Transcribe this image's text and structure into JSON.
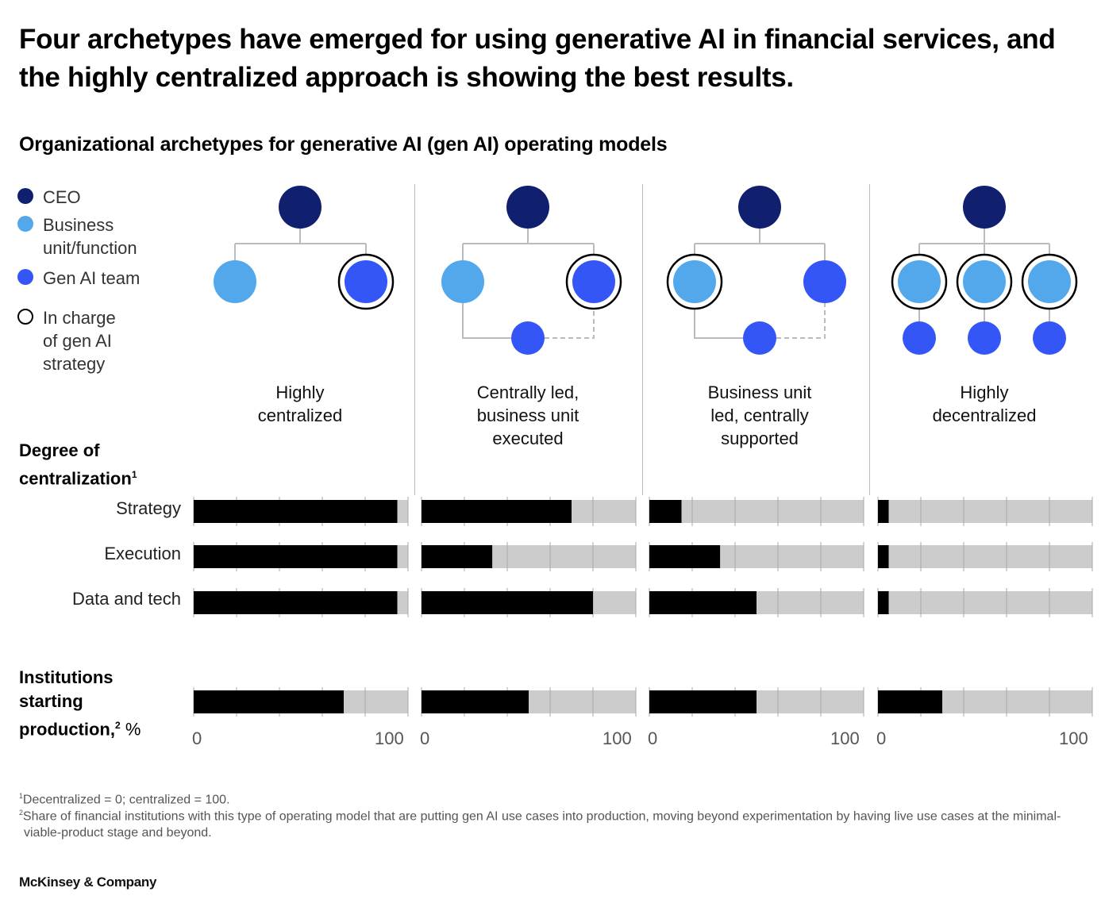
{
  "title": "Four archetypes have emerged for using generative AI in financial services, and the highly centralized approach is showing the best results.",
  "subtitle": "Organizational archetypes for generative AI (gen AI) operating models",
  "legend": {
    "items": [
      {
        "key": "ceo",
        "label": "CEO",
        "color": "#10206F",
        "icon": "filled-circle-icon"
      },
      {
        "key": "bu",
        "label": "Business unit/function",
        "color": "#53A8EC",
        "icon": "filled-circle-icon"
      },
      {
        "key": "genai",
        "label": "Gen AI team",
        "color": "#3556F6",
        "icon": "filled-circle-icon"
      },
      {
        "key": "charge",
        "label": "In charge of gen AI strategy",
        "color": "#000000",
        "icon": "outline-circle-icon"
      }
    ]
  },
  "colors": {
    "ceo": "#10206F",
    "business_unit": "#53A8EC",
    "gen_ai_team": "#3556F6",
    "bar_fill": "#000000",
    "bar_track": "#CCCCCC",
    "connector": "#BBBBBB"
  },
  "panels": [
    {
      "name": "Highly centralized",
      "label_lines": [
        "Highly",
        "centralized"
      ]
    },
    {
      "name": "Centrally led, business unit executed",
      "label_lines": [
        "Centrally led,",
        "business unit",
        "executed"
      ]
    },
    {
      "name": "Business unit led, centrally supported",
      "label_lines": [
        "Business unit",
        "led, centrally",
        "supported"
      ]
    },
    {
      "name": "Highly decentralized",
      "label_lines": [
        "Highly",
        "decentralized"
      ]
    }
  ],
  "sections": {
    "degree_label_1": "Degree of",
    "degree_label_2": "centralization",
    "degree_sup": "1",
    "institutions_label_1": "Institutions",
    "institutions_label_2": "starting",
    "institutions_label_3": "production,",
    "institutions_sup": "2",
    "institutions_unit": " %"
  },
  "axis": {
    "min_label": "0",
    "max_label": "100"
  },
  "chart_data": {
    "type": "bar",
    "orientation": "horizontal",
    "title": "Organizational archetypes for generative AI (gen AI) operating models",
    "xlim": [
      0,
      100
    ],
    "tick_labels": [
      "0",
      "100"
    ],
    "grid": true,
    "categories": [
      "Highly centralized",
      "Centrally led, business unit executed",
      "Business unit led, centrally supported",
      "Highly decentralized"
    ],
    "degree_of_centralization": {
      "rows": [
        "Strategy",
        "Execution",
        "Data and tech"
      ],
      "series": [
        {
          "name": "Strategy",
          "values": [
            95,
            70,
            15,
            5
          ]
        },
        {
          "name": "Execution",
          "values": [
            95,
            33,
            33,
            5
          ]
        },
        {
          "name": "Data and tech",
          "values": [
            95,
            80,
            50,
            5
          ]
        }
      ]
    },
    "institutions_starting_production_pct": {
      "name": "Institutions starting production, %",
      "values": [
        70,
        50,
        50,
        30
      ]
    }
  },
  "footnotes": [
    {
      "sup": "1",
      "text": "Decentralized = 0; centralized = 100."
    },
    {
      "sup": "2",
      "text": "Share of financial institutions with this type of operating model that are putting gen AI use cases into production, moving beyond experimentation by having live use cases at the minimal-viable-product stage and beyond."
    }
  ],
  "brand": "McKinsey & Company"
}
